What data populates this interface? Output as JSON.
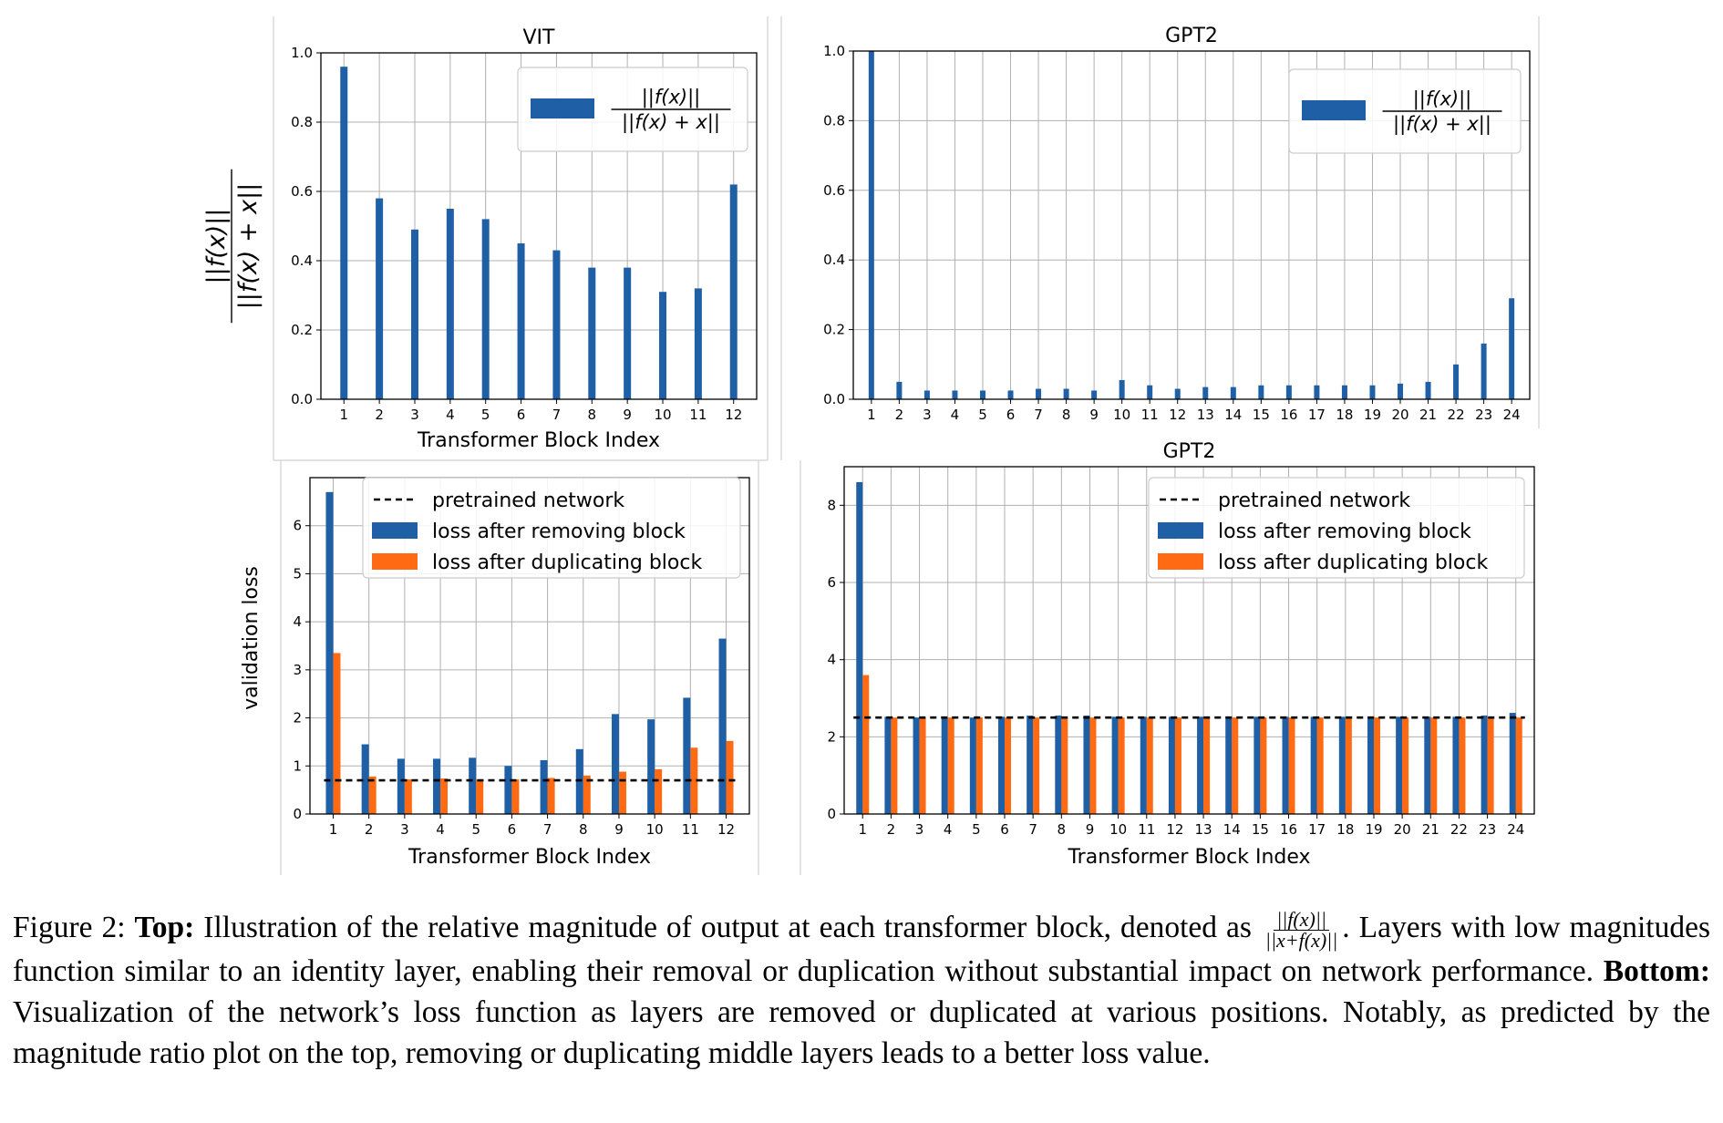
{
  "chart_data": [
    {
      "id": "vit_ratio",
      "type": "bar",
      "title": "VIT",
      "xlabel": "Transformer Block Index",
      "ylabel": "||f(x)|| / ||f(x) + x||",
      "categories": [
        "1",
        "2",
        "3",
        "4",
        "5",
        "6",
        "7",
        "8",
        "9",
        "10",
        "11",
        "12"
      ],
      "ylim": [
        0,
        1.0
      ],
      "yticks": [
        "0.0",
        "0.2",
        "0.4",
        "0.6",
        "0.8",
        "1.0"
      ],
      "grid": true,
      "legend_placement": "upper right",
      "legend": [
        "||f(x)|| / ||f(x) + x||"
      ],
      "series": [
        {
          "name": "||f(x)|| / ||f(x) + x||",
          "color": "#1f5fa6",
          "values": [
            0.96,
            0.58,
            0.49,
            0.55,
            0.52,
            0.45,
            0.43,
            0.38,
            0.38,
            0.31,
            0.32,
            0.62
          ]
        }
      ]
    },
    {
      "id": "gpt2_ratio",
      "type": "bar",
      "title": "GPT2",
      "xlabel": "",
      "ylabel": "",
      "categories": [
        "1",
        "2",
        "3",
        "4",
        "5",
        "6",
        "7",
        "8",
        "9",
        "10",
        "11",
        "12",
        "13",
        "14",
        "15",
        "16",
        "17",
        "18",
        "19",
        "20",
        "21",
        "22",
        "23",
        "24"
      ],
      "ylim": [
        0,
        1.0
      ],
      "yticks": [
        "0.0",
        "0.2",
        "0.4",
        "0.6",
        "0.8",
        "1.0"
      ],
      "grid": true,
      "legend_placement": "upper right",
      "legend": [
        "||f(x)|| / ||f(x) + x||"
      ],
      "series": [
        {
          "name": "||f(x)|| / ||f(x) + x||",
          "color": "#1f5fa6",
          "values": [
            1.0,
            0.05,
            0.025,
            0.025,
            0.025,
            0.025,
            0.03,
            0.03,
            0.025,
            0.055,
            0.04,
            0.03,
            0.035,
            0.035,
            0.04,
            0.04,
            0.04,
            0.04,
            0.04,
            0.045,
            0.05,
            0.1,
            0.16,
            0.29
          ]
        }
      ]
    },
    {
      "id": "vit_loss",
      "type": "bar",
      "title": "",
      "xlabel": "Transformer Block Index",
      "ylabel": "validation loss",
      "categories": [
        "1",
        "2",
        "3",
        "4",
        "5",
        "6",
        "7",
        "8",
        "9",
        "10",
        "11",
        "12"
      ],
      "ylim": [
        0,
        7
      ],
      "yticks": [
        "0",
        "1",
        "2",
        "3",
        "4",
        "5",
        "6"
      ],
      "grid": true,
      "legend_placement": "upper right",
      "legend": [
        "pretrained network",
        "loss after removing block",
        "loss after duplicating block"
      ],
      "baseline": {
        "name": "pretrained network",
        "value": 0.7
      },
      "series": [
        {
          "name": "loss after removing block",
          "color": "#1f5fa6",
          "values": [
            6.7,
            1.45,
            1.15,
            1.15,
            1.17,
            1.0,
            1.12,
            1.35,
            2.08,
            1.97,
            2.42,
            3.65
          ]
        },
        {
          "name": "loss after duplicating block",
          "color": "#ff6a13",
          "values": [
            3.35,
            0.78,
            0.72,
            0.74,
            0.72,
            0.72,
            0.75,
            0.8,
            0.88,
            0.93,
            1.38,
            1.52
          ]
        }
      ]
    },
    {
      "id": "gpt2_loss",
      "type": "bar",
      "title": "GPT2",
      "xlabel": "Transformer Block Index",
      "ylabel": "",
      "categories": [
        "1",
        "2",
        "3",
        "4",
        "5",
        "6",
        "7",
        "8",
        "9",
        "10",
        "11",
        "12",
        "13",
        "14",
        "15",
        "16",
        "17",
        "18",
        "19",
        "20",
        "21",
        "22",
        "23",
        "24"
      ],
      "ylim": [
        0,
        9
      ],
      "yticks": [
        "0",
        "2",
        "4",
        "6",
        "8"
      ],
      "grid": true,
      "legend_placement": "upper right",
      "legend": [
        "pretrained network",
        "loss after removing block",
        "loss after duplicating block"
      ],
      "baseline": {
        "name": "pretrained network",
        "value": 2.5
      },
      "series": [
        {
          "name": "loss after removing block",
          "color": "#1f5fa6",
          "values": [
            8.6,
            2.52,
            2.5,
            2.5,
            2.5,
            2.52,
            2.55,
            2.55,
            2.55,
            2.52,
            2.52,
            2.52,
            2.52,
            2.52,
            2.52,
            2.52,
            2.52,
            2.52,
            2.52,
            2.52,
            2.52,
            2.52,
            2.55,
            2.62
          ]
        },
        {
          "name": "loss after duplicating block",
          "color": "#ff6a13",
          "values": [
            3.6,
            2.5,
            2.5,
            2.5,
            2.5,
            2.5,
            2.5,
            2.5,
            2.5,
            2.5,
            2.5,
            2.5,
            2.5,
            2.5,
            2.5,
            2.5,
            2.5,
            2.5,
            2.5,
            2.5,
            2.5,
            2.5,
            2.5,
            2.5
          ]
        }
      ]
    }
  ],
  "caption": {
    "prefix": "Figure 2: ",
    "top_label": "Top:",
    "text1": " Illustration of the relative magnitude of output at each transformer block, denoted as ",
    "frac_num": "||f(x)||",
    "frac_den": "||x+f(x)||",
    "text2": ". Layers with low magnitudes function similar to an identity layer, enabling their removal or duplication without substantial impact on network performance. ",
    "bottom_label": "Bottom:",
    "text3": " Visualization of the network’s loss function as layers are removed or duplicated at various positions. Notably, as predicted by the magnitude ratio plot on the top, removing or duplicating middle layers leads to a better loss value."
  }
}
